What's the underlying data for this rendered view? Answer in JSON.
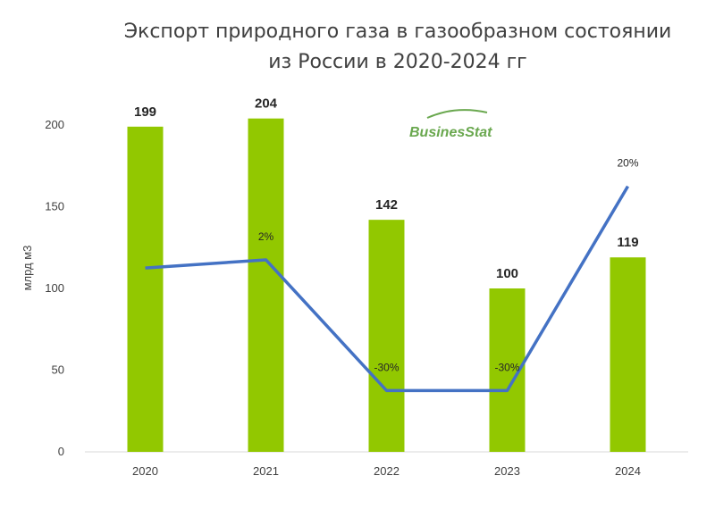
{
  "chart_data": {
    "type": "bar",
    "title": [
      "Экспорт природного газа в газообразном состоянии",
      "из России в 2020-2024 гг"
    ],
    "ylabel": "млрд м3",
    "categories": [
      "2020",
      "2021",
      "2022",
      "2023",
      "2024"
    ],
    "ylim": [
      0,
      200
    ],
    "yticks": [
      "0",
      "50",
      "100",
      "150",
      "200"
    ],
    "grid": false,
    "series": [
      {
        "values": [
          199,
          204,
          142,
          100,
          119
        ],
        "color": "#92c800",
        "data_labels": [
          "199",
          "204",
          "142",
          "100",
          "119"
        ]
      }
    ],
    "growth_line": {
      "color": "#4472c4",
      "labels": [
        "",
        "2%",
        "-30%",
        "-30%",
        "20%"
      ]
    }
  },
  "watermark": {
    "text": "BusinesStat",
    "color": "#6aa84f"
  }
}
